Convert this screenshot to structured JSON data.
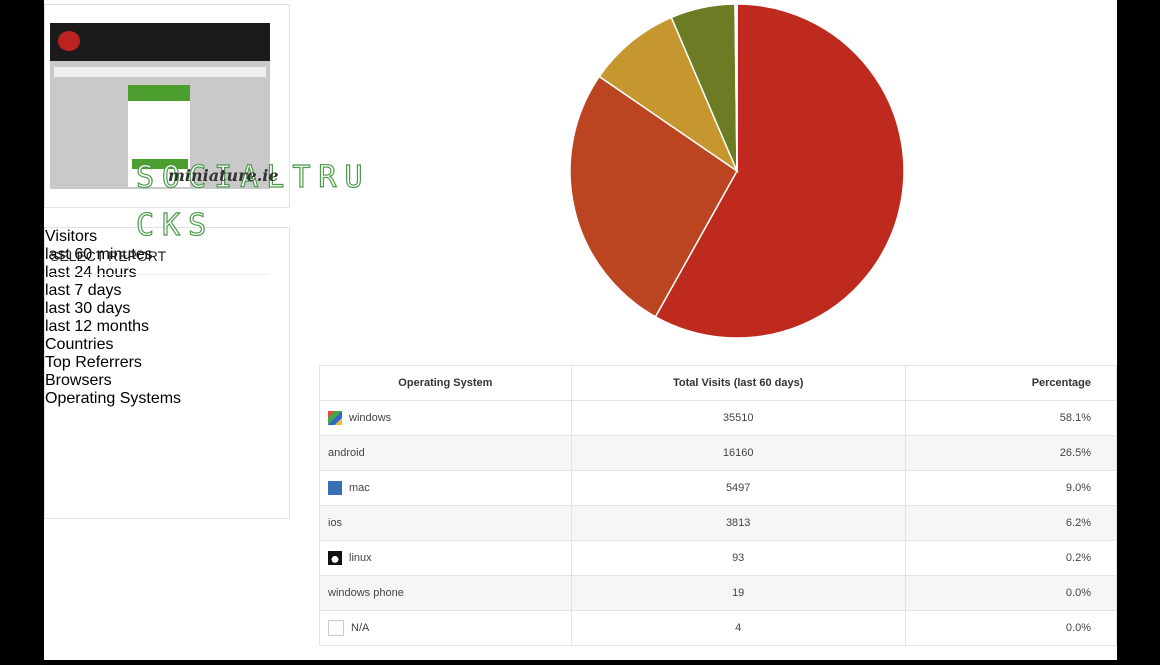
{
  "watermark": {
    "lines": [
      "SOCIALTRU",
      "CKS"
    ],
    "site": "miniature.ie"
  },
  "sidebar": {
    "title": "SELECT REPORT",
    "items": [
      {
        "label": "Visitors",
        "children": [
          "last 60 minutes",
          "last 24 hours",
          "last 7 days",
          "last 30 days",
          "last 12 months"
        ]
      },
      {
        "label": "Countries"
      },
      {
        "label": "Top Referrers"
      },
      {
        "label": "Browsers"
      },
      {
        "label": "Operating Systems"
      }
    ]
  },
  "table": {
    "columns": [
      "Operating System",
      "Total Visits (last 60 days)",
      "Percentage"
    ],
    "rows": [
      {
        "os": "windows",
        "visits": 35510,
        "percentage": "58.1%",
        "icon": "windows",
        "color": "#bf2a1f"
      },
      {
        "os": "android",
        "visits": 16160,
        "percentage": "26.5%",
        "color": "#bb4520"
      },
      {
        "os": "mac",
        "visits": 5497,
        "percentage": "9.0%",
        "icon": "mac",
        "color": "#c6962f"
      },
      {
        "os": "ios",
        "visits": 3813,
        "percentage": "6.2%",
        "color": "#6b7c24"
      },
      {
        "os": "linux",
        "visits": 93,
        "percentage": "0.2%",
        "icon": "linux",
        "color": "#3d6fb0"
      },
      {
        "os": "windows phone",
        "visits": 19,
        "percentage": "0.0%",
        "color": "#8a4fa0"
      },
      {
        "os": "N/A",
        "visits": 4,
        "percentage": "0.0%",
        "icon": "blank",
        "color": "#999999"
      }
    ]
  }
}
